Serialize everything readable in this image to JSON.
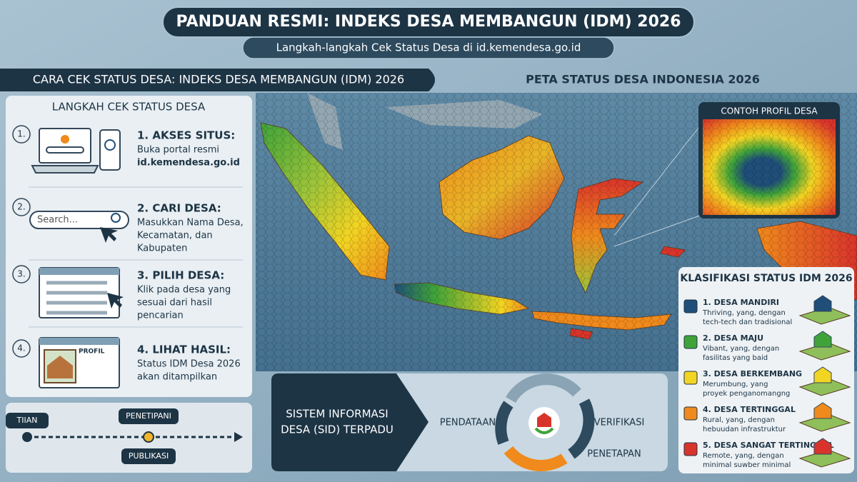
{
  "header": {
    "title": "PANDUAN RESMI: INDEKS DESA MEMBANGUN (IDM) 2026",
    "subtitle": "Langkah-langkah Cek Status Desa di id.kemendesa.go.id"
  },
  "left_panel": {
    "title": "CARA CEK STATUS DESA: INDEKS DESA MEMBANGUN (IDM) 2026",
    "steps_title": "LANGKAH CEK STATUS DESA",
    "steps": [
      {
        "number": "1.",
        "title": "1. AKSES SITUS:",
        "lines": [
          "Buka portal resmi",
          "id.kemendesa.go.id"
        ]
      },
      {
        "number": "2.",
        "title": "2. CARI DESA:",
        "lines": [
          "Masukkan Nama Desa,",
          "Kecamatan, dan",
          "Kabupaten"
        ],
        "search_placeholder": "Search..."
      },
      {
        "number": "3.",
        "title": "3. PILIH DESA:",
        "lines": [
          "Klik pada desa yang",
          "sesuai dari hasil",
          "pencarian"
        ]
      },
      {
        "number": "4.",
        "title": "4. LIHAT HASIL:",
        "lines": [
          "Status IDM Desa 2026",
          "akan ditampilkan"
        ],
        "icon_label": "PROFIL"
      }
    ]
  },
  "timeline": {
    "labels": [
      "TIIAN",
      "PENETIPANI",
      "PUBLIKASI"
    ]
  },
  "map": {
    "title": "PETA STATUS DESA INDONESIA 2026",
    "inset_title": "CONTOH PROFIL DESA"
  },
  "legend": {
    "title": "KLASIFIKASI STATUS IDM 2026",
    "items": [
      {
        "label": "1. DESA MANDIRI",
        "color": "#1f4e79",
        "description": [
          "Thriving, yang, dengan",
          "tech-tech dan tradisional"
        ]
      },
      {
        "label": "2. DESA MAJU",
        "color": "#3fa33a",
        "description": [
          "Vibant, yang, dengan",
          "fasilitas yang baid"
        ]
      },
      {
        "label": "3. DESA BERKEMBANG",
        "color": "#f2d422",
        "description": [
          "Merumbung, yang",
          "proyek penganomangng"
        ]
      },
      {
        "label": "4. DESA TERTINGGAL",
        "color": "#f08a1c",
        "description": [
          "Rural, yang, dengan",
          "hebuudan infrastruktur"
        ]
      },
      {
        "label": "5. DESA SANGAT TERTINGGAL",
        "color": "#d9342b",
        "description": [
          "Remote, yang, dengan",
          "minimal suwber minimal"
        ]
      }
    ]
  },
  "sid": {
    "title_lines": [
      "SISTEM INFORMASI",
      "DESA (SID) TERPADU"
    ],
    "cycle": [
      "PENDATAAN",
      "VERIFIKASI",
      "PENETAPAN"
    ]
  }
}
